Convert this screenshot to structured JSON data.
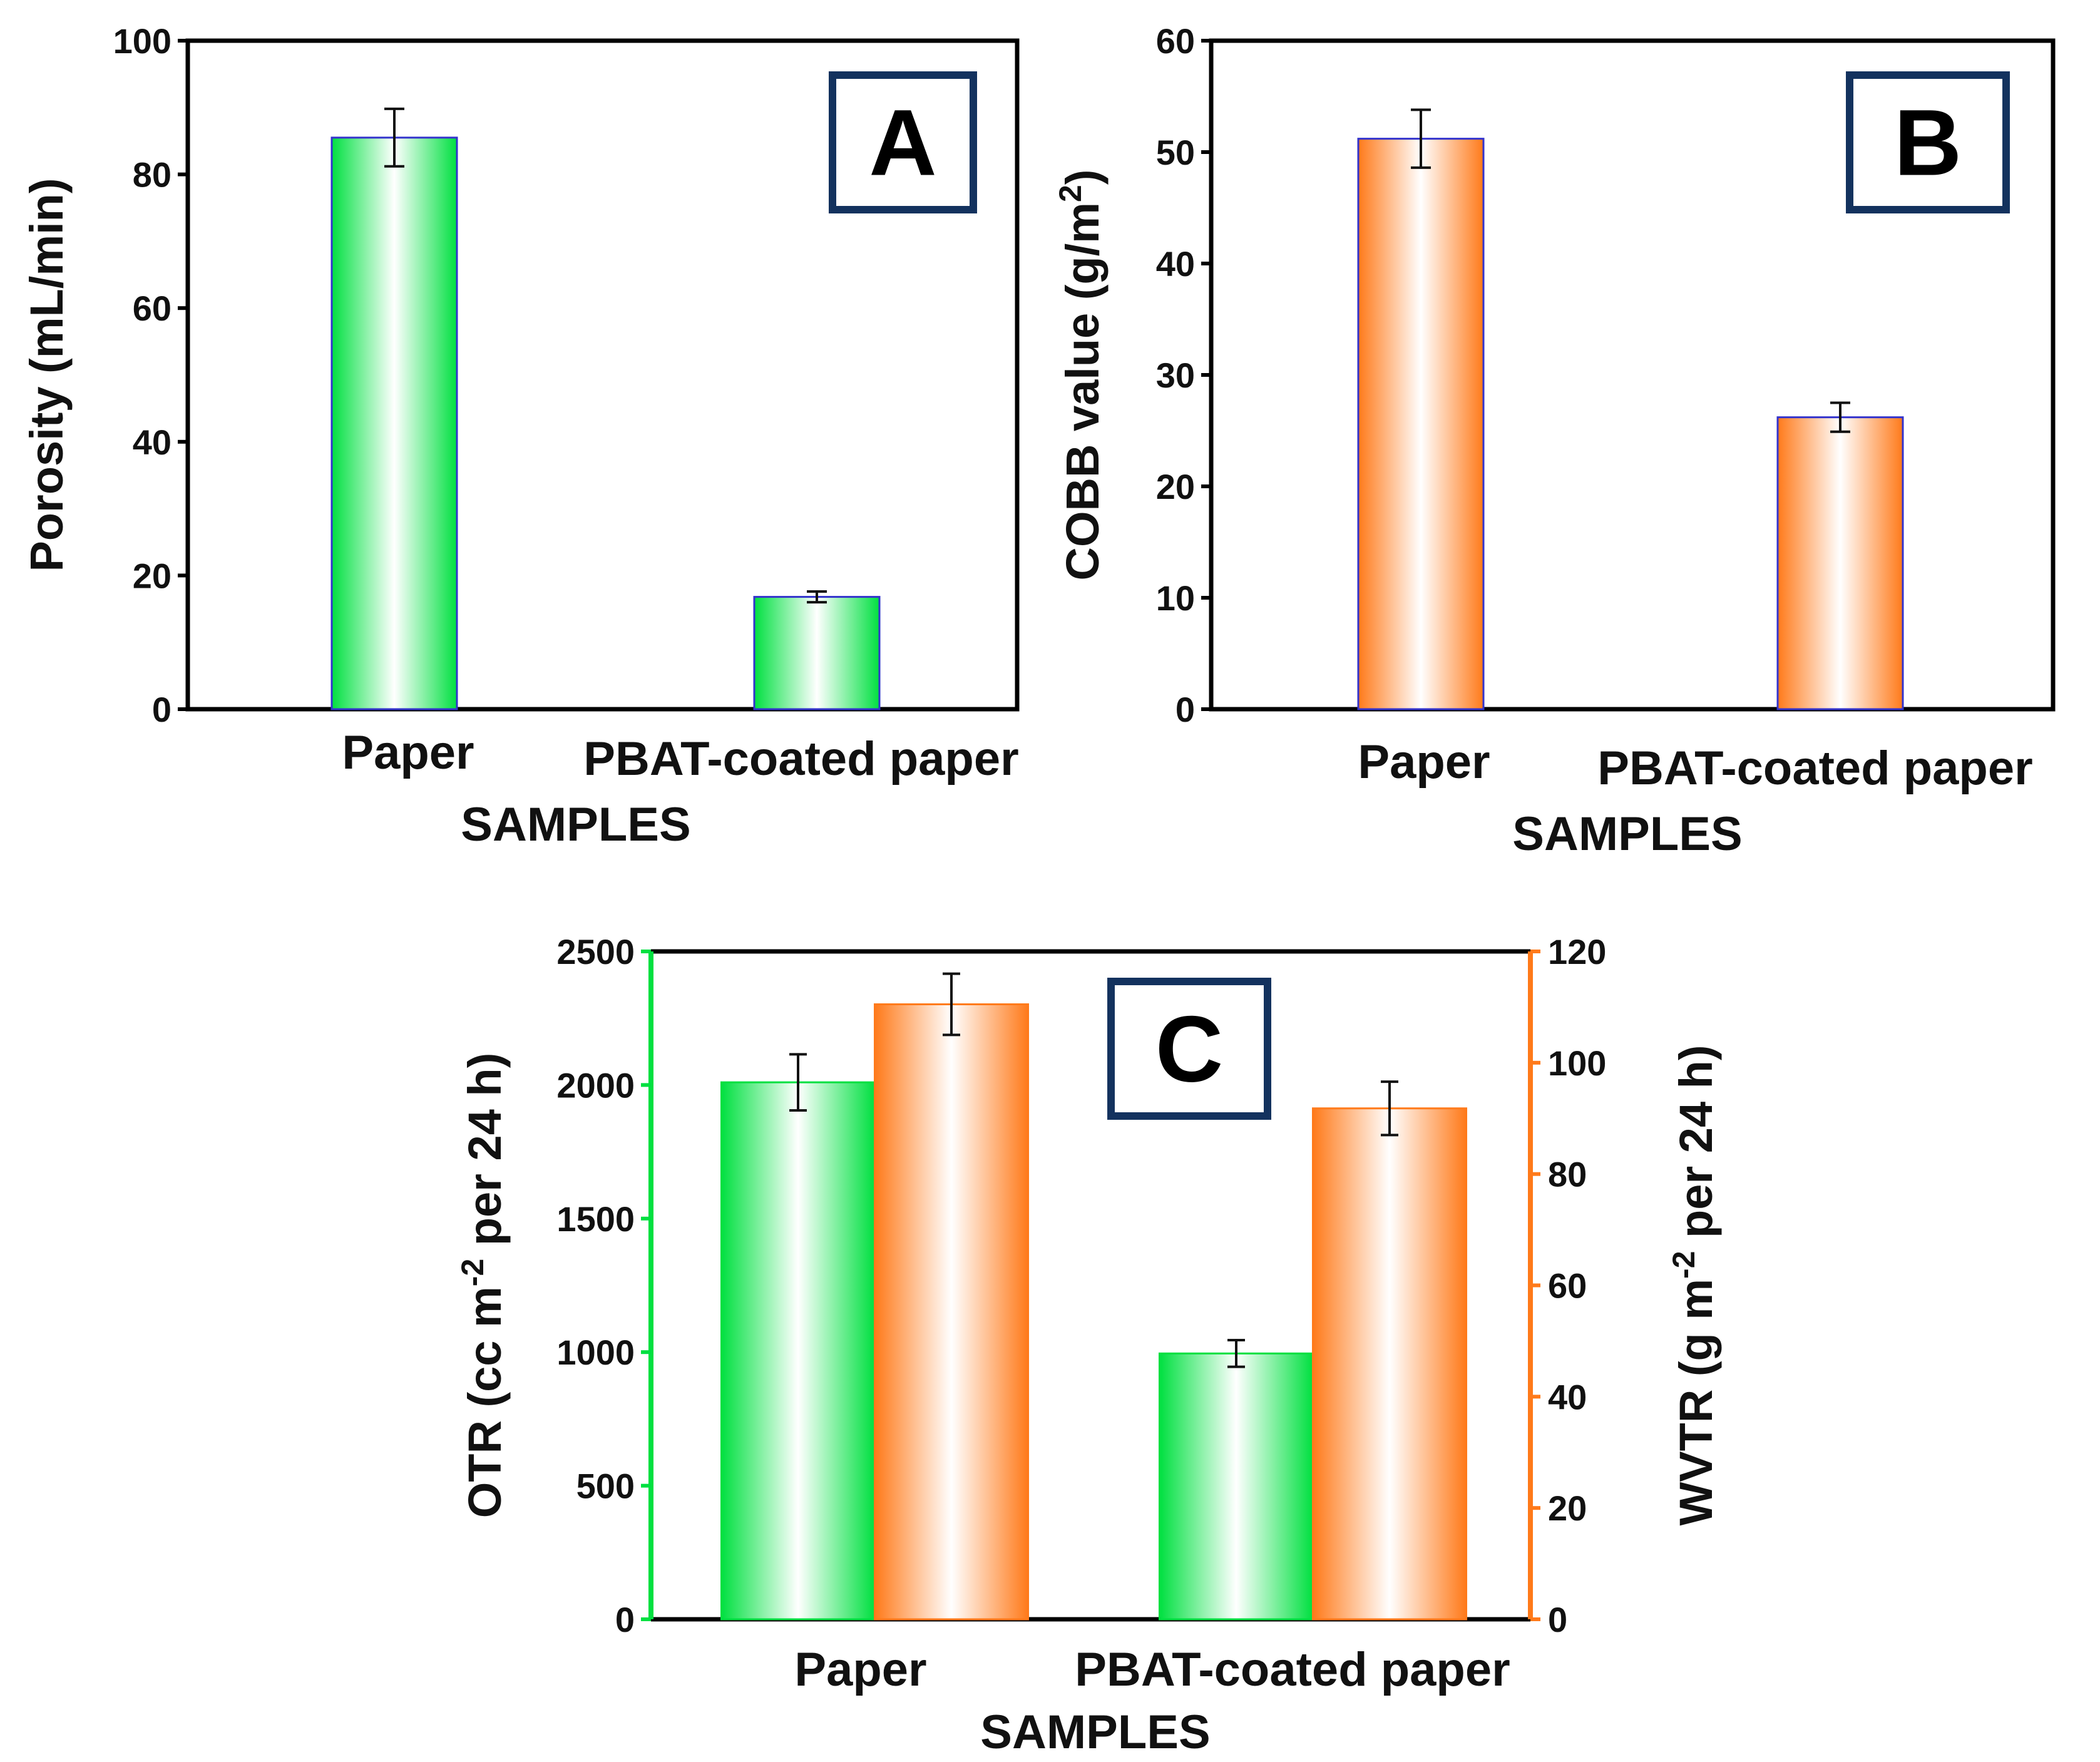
{
  "colors": {
    "green": "#00e040",
    "orange": "#ff7a1a",
    "frame": "#000000",
    "label_box": "#13325e",
    "bar_edge": "#3333cc"
  },
  "chart_data": [
    {
      "id": "A",
      "type": "bar",
      "panel_label": "A",
      "categories": [
        "Paper",
        "PBAT-coated paper"
      ],
      "values": [
        85.5,
        16.8
      ],
      "errors": [
        4.3,
        0.8
      ],
      "ylabel": "Porosity (mL/min)",
      "xlabel": "SAMPLES",
      "ylim": [
        0,
        100
      ],
      "yticks": [
        0,
        20,
        40,
        60,
        80,
        100
      ],
      "fill": "green"
    },
    {
      "id": "B",
      "type": "bar",
      "panel_label": "B",
      "categories": [
        "Paper",
        "PBAT-coated paper"
      ],
      "values": [
        51.2,
        26.2
      ],
      "errors": [
        2.6,
        1.3
      ],
      "ylabel_main": "COBB value (g/m",
      "ylabel_sup": "2",
      "ylabel_end": ")",
      "xlabel": "SAMPLES",
      "ylim": [
        0,
        60
      ],
      "yticks": [
        0,
        10,
        20,
        30,
        40,
        50,
        60
      ],
      "fill": "orange"
    },
    {
      "id": "C",
      "type": "bar",
      "panel_label": "C",
      "categories": [
        "Paper",
        "PBAT-coated paper"
      ],
      "xlabel": "SAMPLES",
      "series": [
        {
          "name": "OTR",
          "axis": "left",
          "values": [
            2010,
            995
          ],
          "errors": [
            105,
            50
          ],
          "fill": "green",
          "ylabel_main": "OTR (cc m",
          "ylabel_sup": "-2",
          "ylabel_end": " per 24 h)",
          "ylim": [
            0,
            2500
          ],
          "yticks": [
            0,
            500,
            1000,
            1500,
            2000,
            2500
          ]
        },
        {
          "name": "WVTR",
          "axis": "right",
          "values": [
            110.5,
            91.8
          ],
          "errors": [
            5.5,
            4.8
          ],
          "fill": "orange",
          "ylabel_main": "WVTR (g m",
          "ylabel_sup": "-2",
          "ylabel_end": " per 24 h)",
          "ylim": [
            0,
            120
          ],
          "yticks": [
            0,
            20,
            40,
            60,
            80,
            100,
            120
          ]
        }
      ]
    }
  ]
}
